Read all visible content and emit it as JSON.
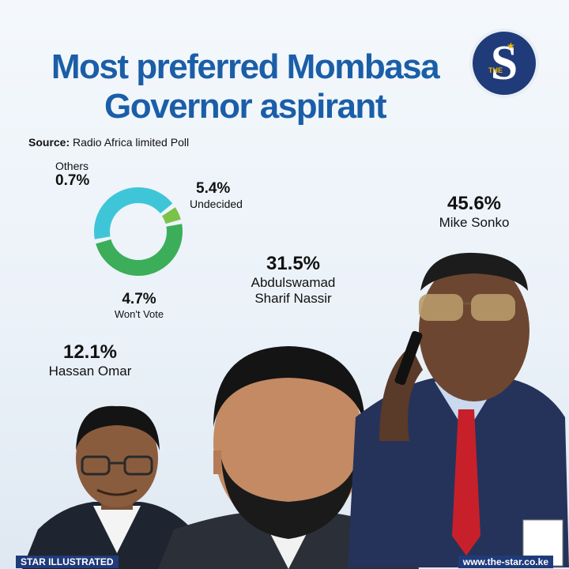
{
  "title_lines": [
    "Most preferred Mombasa",
    "Governor aspirant"
  ],
  "source": {
    "label": "Source:",
    "text": "Radio Africa limited Poll"
  },
  "logo": {
    "letter": "S",
    "small_text": "THE"
  },
  "chart_data": {
    "type": "pie",
    "subtype": "donut",
    "title": "Most preferred Mombasa Governor aspirant",
    "slices": [
      {
        "label": "Mike Sonko",
        "value": 45.6,
        "display": "45.6%"
      },
      {
        "label": "Abdulswamad Sharif Nassir",
        "value": 31.5,
        "display": "31.5%"
      },
      {
        "label": "Hassan Omar",
        "value": 12.1,
        "display": "12.1%"
      },
      {
        "label": "Undecided",
        "value": 5.4,
        "display": "5.4%"
      },
      {
        "label": "Won't Vote",
        "value": 4.7,
        "display": "4.7%"
      },
      {
        "label": "Others",
        "value": 0.7,
        "display": "0.7%"
      }
    ],
    "donut_segments": [
      {
        "label": "Undecided",
        "value": 5.4,
        "color": "#3cae5a"
      },
      {
        "label": "Won't Vote",
        "value": 4.7,
        "color": "#3ec6d8"
      },
      {
        "label": "Others",
        "value": 0.7,
        "color": "#7bc24a"
      }
    ]
  },
  "footer": {
    "left": "STAR ILLUSTRATED",
    "right": "www.the-star.co.ke"
  },
  "colors": {
    "title": "#1b5ea8",
    "brand": "#1f3b7a"
  }
}
